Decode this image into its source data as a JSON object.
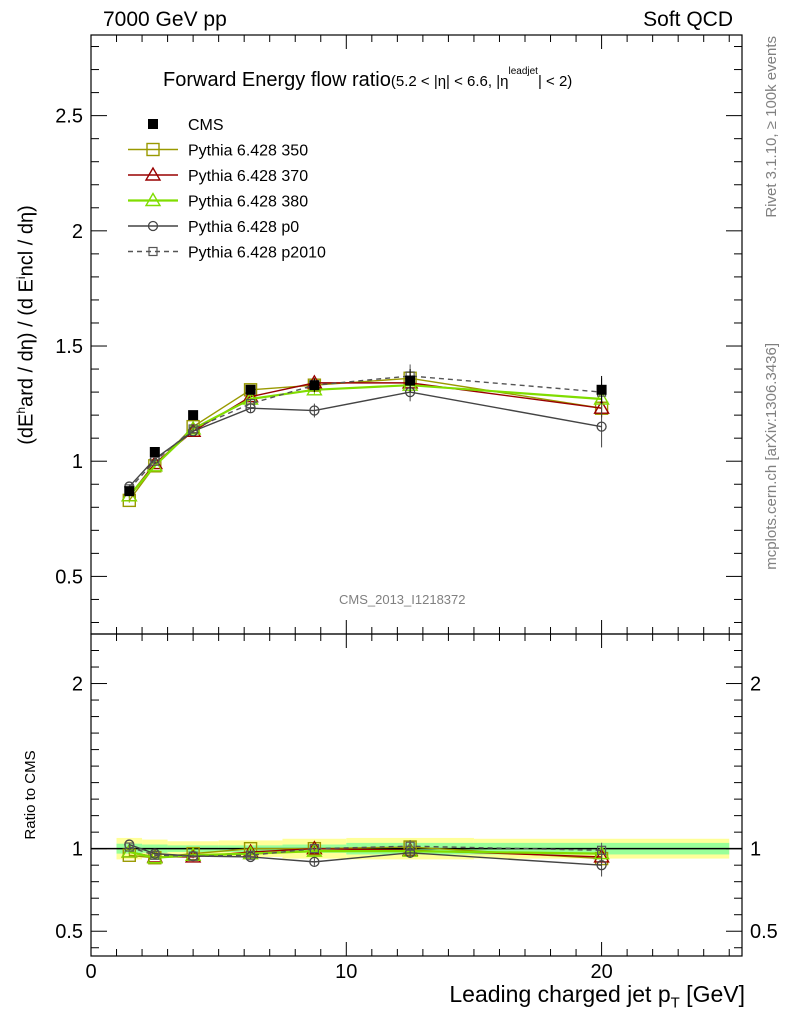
{
  "header": {
    "left": "7000 GeV pp",
    "right": "Soft QCD"
  },
  "side_labels": {
    "rivet": "Rivet 3.1.10, ≥ 100k events",
    "mcplots": "mcplots.cern.ch [arXiv:1306.3436]"
  },
  "analysis_id": "CMS_2013_I1218372",
  "chart_data": [
    {
      "type": "line",
      "title": "Forward Energy flow ratio",
      "title_sub": "(5.2 < |η| < 6.6, |η",
      "title_sup": "leadjet",
      "title_end": "| < 2)",
      "ylabel": "(dE^hard / dη) / (d E^incl / dη)",
      "ylabel_main_a": "(dE",
      "ylabel_sup": "h",
      "ylabel_main_b": "ard / dη) / (d E",
      "ylabel_sup2": "i",
      "ylabel_main_c": "ncl / dη)",
      "xlabel": "Leading charged jet p",
      "xlabel_sub": "T",
      "xlabel_unit": " [GeV]",
      "xlim": [
        0,
        25.5
      ],
      "ylim": [
        0.25,
        2.85
      ],
      "yticks": [
        0.5,
        1,
        1.5,
        2,
        2.5
      ],
      "ytick_labels": [
        "0.5",
        "1",
        "1.5",
        "2",
        "2.5"
      ],
      "legend_position": "top-left",
      "x": [
        1.5,
        2.5,
        4,
        6.25,
        8.75,
        12.5,
        20
      ],
      "series": [
        {
          "name": "CMS",
          "color": "#000000",
          "marker": "filled-square",
          "line": "none",
          "values": [
            0.87,
            1.04,
            1.2,
            1.31,
            1.33,
            1.35,
            1.31
          ],
          "errors": [
            0.02,
            0.02,
            0.02,
            0.02,
            0.03,
            0.05,
            0.06
          ]
        },
        {
          "name": "Pythia 6.428 350",
          "color": "#999900",
          "marker": "open-square",
          "line": "solid",
          "values": [
            0.83,
            0.98,
            1.15,
            1.31,
            1.33,
            1.36,
            1.23
          ],
          "errors": [
            0.01,
            0.01,
            0.01,
            0.02,
            0.02,
            0.04,
            0.04
          ]
        },
        {
          "name": "Pythia 6.428 370",
          "color": "#990000",
          "marker": "open-triangle",
          "line": "solid",
          "values": [
            0.85,
            0.99,
            1.13,
            1.28,
            1.34,
            1.34,
            1.23
          ],
          "errors": [
            0.01,
            0.01,
            0.01,
            0.02,
            0.02,
            0.04,
            0.04
          ]
        },
        {
          "name": "Pythia 6.428 380",
          "color": "#80dd00",
          "marker": "open-triangle",
          "line": "solid",
          "values": [
            0.85,
            0.98,
            1.14,
            1.27,
            1.31,
            1.33,
            1.27
          ],
          "errors": [
            0.01,
            0.01,
            0.01,
            0.02,
            0.02,
            0.04,
            0.04
          ]
        },
        {
          "name": "Pythia 6.428 p0",
          "color": "#444444",
          "marker": "open-circle",
          "line": "solid",
          "values": [
            0.89,
            1.01,
            1.13,
            1.23,
            1.22,
            1.3,
            1.15
          ],
          "errors": [
            0.01,
            0.01,
            0.01,
            0.02,
            0.03,
            0.04,
            0.09
          ]
        },
        {
          "name": "Pythia 6.428 p2010",
          "color": "#555555",
          "marker": "open-square-small",
          "line": "dashed",
          "values": [
            0.88,
            1.0,
            1.14,
            1.25,
            1.33,
            1.37,
            1.3
          ],
          "errors": [
            0.01,
            0.01,
            0.01,
            0.02,
            0.02,
            0.05,
            0.06
          ]
        }
      ]
    },
    {
      "type": "line",
      "ylabel": "Ratio to CMS",
      "xlim": [
        0,
        25.5
      ],
      "ylim": [
        0.35,
        2.3
      ],
      "yticks": [
        0.5,
        1,
        2
      ],
      "ytick_labels": [
        "0.5",
        "1",
        "2"
      ],
      "xticks": [
        0,
        10,
        20
      ],
      "xtick_labels": [
        "0",
        "10",
        "20"
      ],
      "band_yellow": [
        [
          1.0,
          2.0,
          0.065
        ],
        [
          2.0,
          3.0,
          0.055
        ],
        [
          3.0,
          5.0,
          0.045
        ],
        [
          5.0,
          7.5,
          0.05
        ],
        [
          7.5,
          10.0,
          0.06
        ],
        [
          10.0,
          15.0,
          0.065
        ],
        [
          15.0,
          25.0,
          0.06
        ]
      ],
      "band_green": [
        [
          1.0,
          2.0,
          0.03
        ],
        [
          2.0,
          3.0,
          0.025
        ],
        [
          3.0,
          5.0,
          0.02
        ],
        [
          5.0,
          7.5,
          0.02
        ],
        [
          7.5,
          10.0,
          0.025
        ],
        [
          10.0,
          15.0,
          0.035
        ],
        [
          15.0,
          25.0,
          0.035
        ]
      ],
      "series": [
        {
          "name": "Pythia 6.428 350",
          "values": [
            0.96,
            0.945,
            0.97,
            1.0,
            1.0,
            1.01,
            0.94
          ]
        },
        {
          "name": "Pythia 6.428 370",
          "values": [
            0.98,
            0.95,
            0.95,
            0.98,
            1.0,
            0.99,
            0.95
          ]
        },
        {
          "name": "Pythia 6.428 380",
          "values": [
            0.98,
            0.945,
            0.96,
            0.97,
            0.985,
            0.985,
            0.97
          ]
        },
        {
          "name": "Pythia 6.428 p0",
          "values": [
            1.025,
            0.97,
            0.955,
            0.95,
            0.92,
            0.975,
            0.9
          ]
        },
        {
          "name": "Pythia 6.428 p2010",
          "values": [
            1.01,
            0.96,
            0.955,
            0.96,
            1.0,
            1.015,
            0.99
          ]
        }
      ]
    }
  ]
}
